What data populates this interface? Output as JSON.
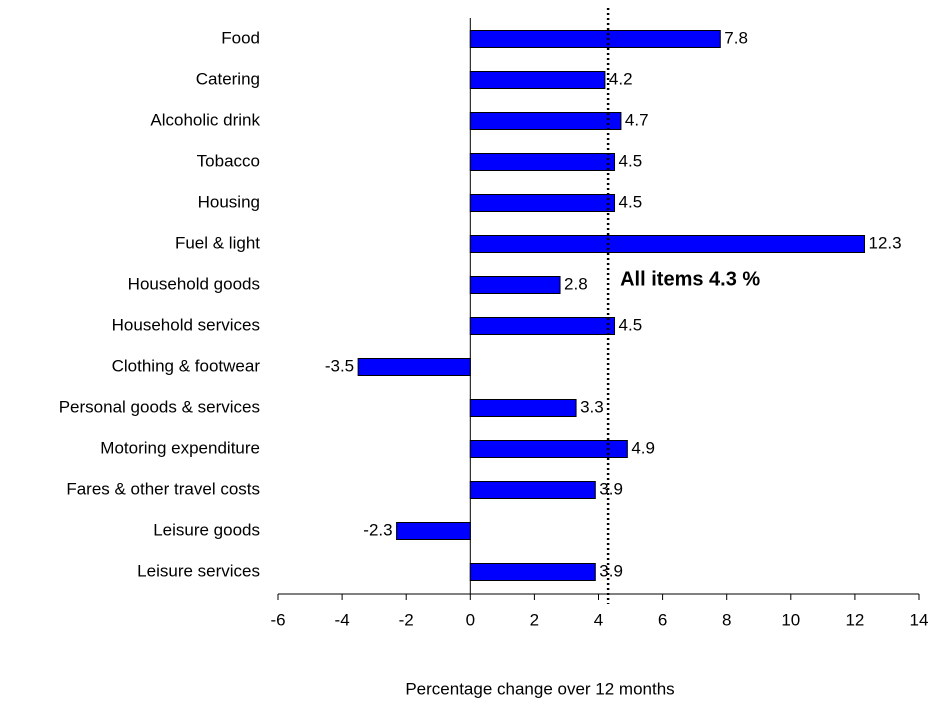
{
  "chart_data": {
    "type": "bar",
    "orientation": "horizontal",
    "categories": [
      "Food",
      "Catering",
      "Alcoholic drink",
      "Tobacco",
      "Housing",
      "Fuel & light",
      "Household goods",
      "Household services",
      "Clothing & footwear",
      "Personal goods & services",
      "Motoring expenditure",
      "Fares & other travel costs",
      "Leisure goods",
      "Leisure services"
    ],
    "values": [
      7.8,
      4.2,
      4.7,
      4.5,
      4.5,
      12.3,
      2.8,
      4.5,
      -3.5,
      3.3,
      4.9,
      3.9,
      -2.3,
      3.9
    ],
    "color": "#0000ff",
    "xlim": [
      -6,
      14
    ],
    "xticks": [
      -6,
      -4,
      -2,
      0,
      2,
      4,
      6,
      8,
      10,
      12,
      14
    ],
    "x_label": "Percentage change over 12 months",
    "reference_line": {
      "value": 4.3,
      "label": "All items 4.3 %"
    }
  }
}
